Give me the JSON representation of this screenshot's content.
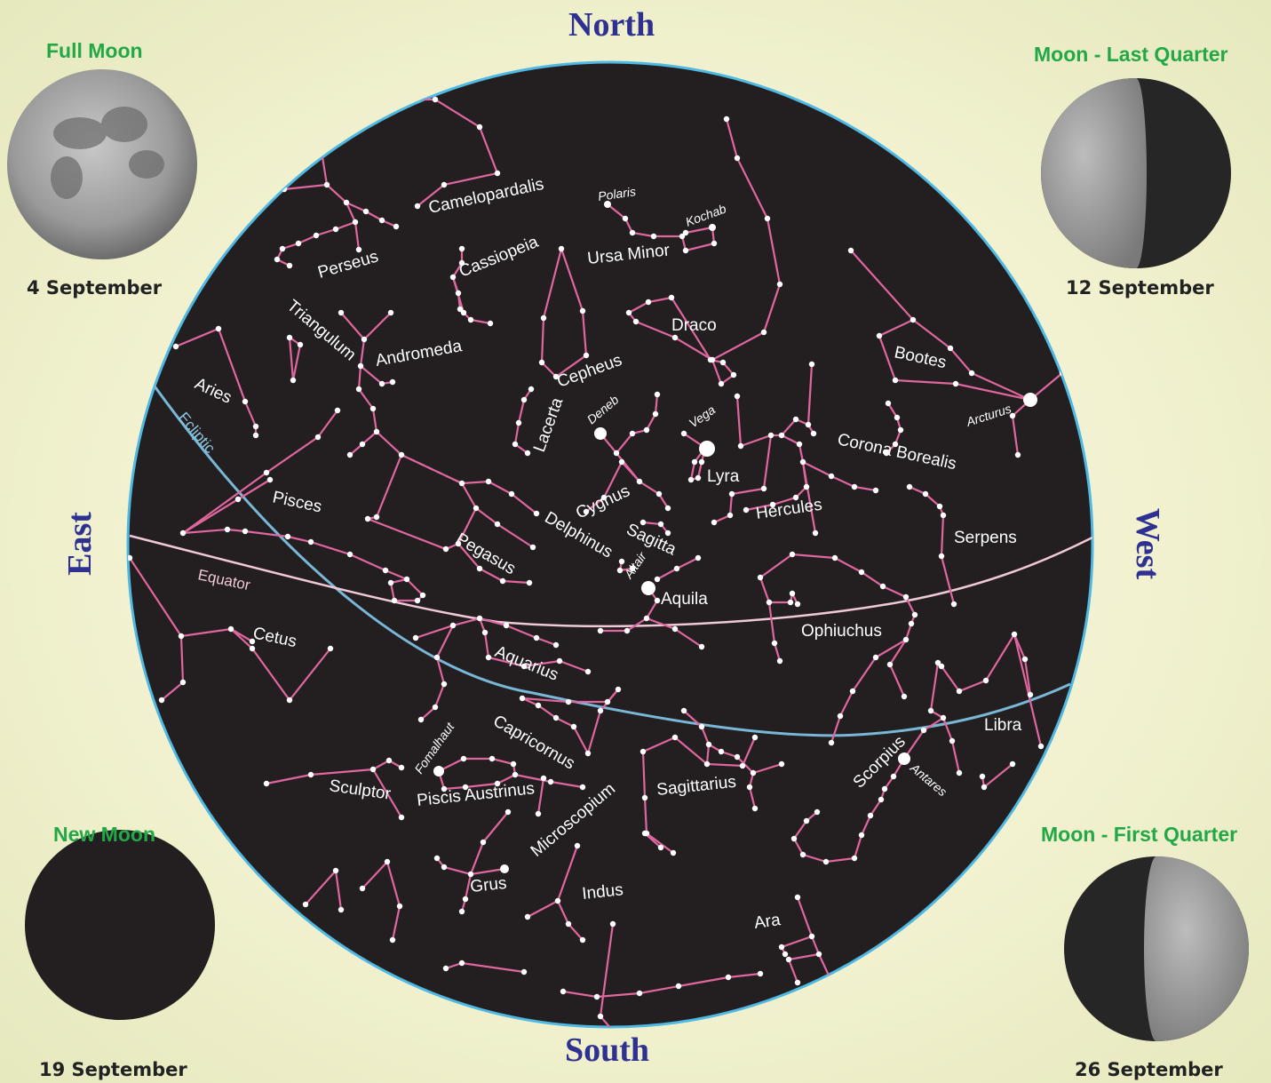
{
  "compass": {
    "north": "North",
    "south": "South",
    "east": "East",
    "west": "West"
  },
  "moons": {
    "full": {
      "title": "Full Moon",
      "date": "4 September"
    },
    "last_quarter": {
      "title": "Moon - Last Quarter",
      "date": "12 September"
    },
    "new": {
      "title": "New Moon",
      "date": "19 September"
    },
    "first_quarter": {
      "title": "Moon - First Quarter",
      "date": "26 September"
    }
  },
  "lines": {
    "ecliptic": "Ecliptic",
    "equator": "Equator"
  },
  "constellations": {
    "camelopardalis": "Camelopardalis",
    "perseus": "Perseus",
    "cassiopeia": "Cassiopeia",
    "ursa_minor": "Ursa Minor",
    "draco": "Draco",
    "triangulum": "Triangulum",
    "andromeda": "Andromeda",
    "aries": "Aries",
    "cepheus": "Cepheus",
    "lacerta": "Lacerta",
    "bootes": "Bootes",
    "corona_borealis": "Corona Borealis",
    "lyra": "Lyra",
    "cygnus": "Cygnus",
    "hercules": "Hercules",
    "pisces": "Pisces",
    "pegasus": "Pegasus",
    "delphinus": "Delphinus",
    "sagitta": "Sagitta",
    "serpens": "Serpens",
    "aquila": "Aquila",
    "cetus": "Cetus",
    "ophiuchus": "Ophiuchus",
    "aquarius": "Aquarius",
    "capricornus": "Capricornus",
    "libra": "Libra",
    "sculptor": "Sculptor",
    "piscis_austrinus": "Piscis Austrinus",
    "sagittarius": "Sagittarius",
    "scorpius": "Scorpius",
    "microscopium": "Microscopium",
    "grus": "Grus",
    "indus": "Indus",
    "ara": "Ara"
  },
  "stars": {
    "polaris": "Polaris",
    "kochab": "Kochab",
    "deneb": "Deneb",
    "vega": "Vega",
    "arcturus": "Arcturus",
    "altair": "Altair",
    "fomalhaut": "Fomalhaut",
    "antares": "Antares"
  },
  "colors": {
    "sky": "#231f20",
    "rim": "#4fb8e3",
    "figure": "#e0679e",
    "ecliptic": "#78b7d6",
    "equator": "#f0c8d8",
    "direction": "#2e3192",
    "moon_title": "#22a846"
  }
}
